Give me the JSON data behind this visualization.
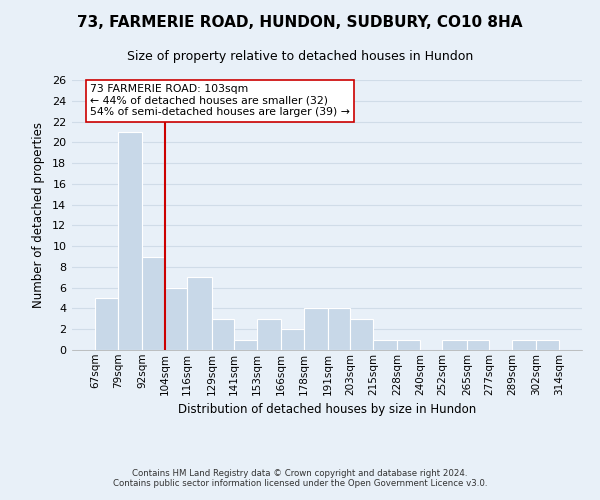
{
  "title": "73, FARMERIE ROAD, HUNDON, SUDBURY, CO10 8HA",
  "subtitle": "Size of property relative to detached houses in Hundon",
  "xlabel": "Distribution of detached houses by size in Hundon",
  "ylabel": "Number of detached properties",
  "bar_left_edges": [
    67,
    79,
    92,
    104,
    116,
    129,
    141,
    153,
    166,
    178,
    191,
    203,
    215,
    228,
    240,
    252,
    265,
    277,
    289,
    302
  ],
  "bar_heights": [
    5,
    21,
    9,
    6,
    7,
    3,
    1,
    3,
    2,
    4,
    4,
    3,
    1,
    1,
    0,
    1,
    1,
    0,
    1,
    1
  ],
  "bin_labels": [
    "67sqm",
    "79sqm",
    "92sqm",
    "104sqm",
    "116sqm",
    "129sqm",
    "141sqm",
    "153sqm",
    "166sqm",
    "178sqm",
    "191sqm",
    "203sqm",
    "215sqm",
    "228sqm",
    "240sqm",
    "252sqm",
    "265sqm",
    "277sqm",
    "289sqm",
    "302sqm",
    "314sqm"
  ],
  "bar_color": "#c8d8e8",
  "bar_edge_color": "#ffffff",
  "grid_color": "#d0dce8",
  "bg_color": "#e8f0f8",
  "vline_x": 104,
  "vline_color": "#cc0000",
  "annotation_line1": "73 FARMERIE ROAD: 103sqm",
  "annotation_line2": "← 44% of detached houses are smaller (32)",
  "annotation_line3": "54% of semi-detached houses are larger (39) →",
  "ylim": [
    0,
    26
  ],
  "yticks": [
    0,
    2,
    4,
    6,
    8,
    10,
    12,
    14,
    16,
    18,
    20,
    22,
    24,
    26
  ],
  "footer_line1": "Contains HM Land Registry data © Crown copyright and database right 2024.",
  "footer_line2": "Contains public sector information licensed under the Open Government Licence v3.0."
}
